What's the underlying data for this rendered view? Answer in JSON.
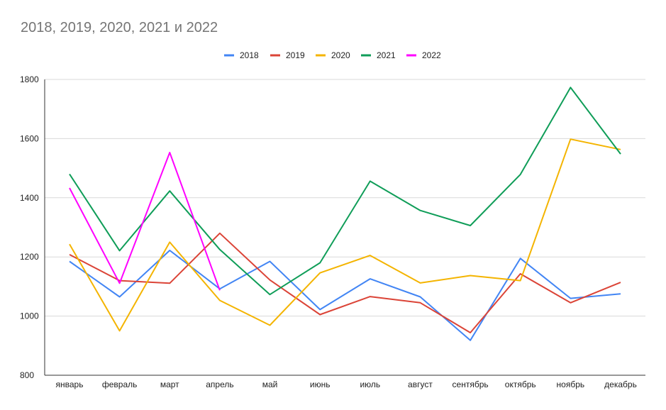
{
  "chart_data": {
    "type": "line",
    "title": "2018, 2019, 2020, 2021 и 2022",
    "xlabel": "",
    "ylabel": "",
    "categories": [
      "январь",
      "февраль",
      "март",
      "апрель",
      "май",
      "июнь",
      "июль",
      "август",
      "сентябрь",
      "октябрь",
      "ноябрь",
      "декабрь"
    ],
    "ylim": [
      800,
      1800
    ],
    "yticks": [
      "800",
      "1000",
      "1200",
      "1400",
      "1600",
      "1800"
    ],
    "grid": true,
    "legend_position": "top-center",
    "series": [
      {
        "name": "2018",
        "color": "#4285f4",
        "values": [
          1185,
          1065,
          1222,
          1092,
          1185,
          1022,
          1126,
          1065,
          918,
          1195,
          1060,
          1075
        ]
      },
      {
        "name": "2019",
        "color": "#db4437",
        "values": [
          1208,
          1120,
          1111,
          1280,
          1122,
          1005,
          1066,
          1045,
          944,
          1143,
          1045,
          1114
        ]
      },
      {
        "name": "2020",
        "color": "#f4b400",
        "values": [
          1243,
          950,
          1250,
          1053,
          969,
          1146,
          1205,
          1112,
          1137,
          1120,
          1598,
          1563
        ]
      },
      {
        "name": "2021",
        "color": "#0f9d58",
        "values": [
          1480,
          1221,
          1423,
          1225,
          1073,
          1180,
          1456,
          1357,
          1306,
          1479,
          1773,
          1548
        ]
      },
      {
        "name": "2022",
        "color": "#ff00ff",
        "values": [
          1433,
          1111,
          1553,
          1087,
          null,
          null,
          null,
          null,
          null,
          null,
          null,
          null
        ]
      }
    ]
  }
}
